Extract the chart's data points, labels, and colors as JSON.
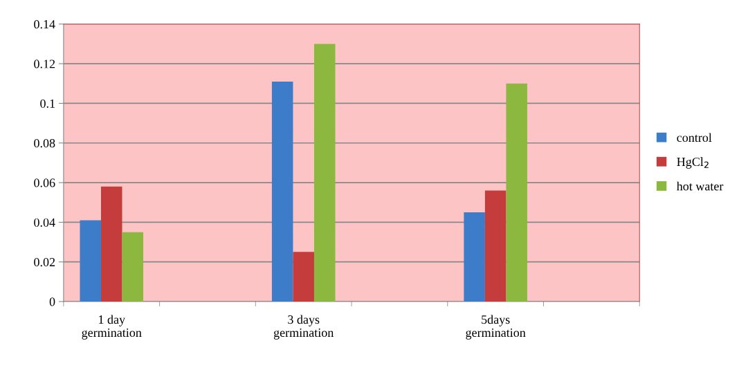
{
  "chart_data": {
    "type": "bar",
    "categories": [
      "1 day\ngermination",
      null,
      "3 days\ngermination",
      null,
      "5days\ngermination",
      null
    ],
    "series": [
      {
        "name": "control",
        "color": "#3d7cc9",
        "values": [
          0.041,
          null,
          0.111,
          null,
          0.045,
          null
        ]
      },
      {
        "name": "HgCl$_{2}$",
        "color": "#c43c3c",
        "values": [
          0.058,
          null,
          0.025,
          null,
          0.056,
          null
        ]
      },
      {
        "name": "hot water",
        "color": "#8db840",
        "values": [
          0.035,
          null,
          0.13,
          null,
          0.11,
          null
        ]
      }
    ],
    "ylim": [
      0,
      0.14
    ],
    "yticks": [
      0,
      0.02,
      0.04,
      0.06,
      0.08,
      0.1,
      0.12,
      0.14
    ],
    "grid": "y",
    "legend": "right"
  }
}
